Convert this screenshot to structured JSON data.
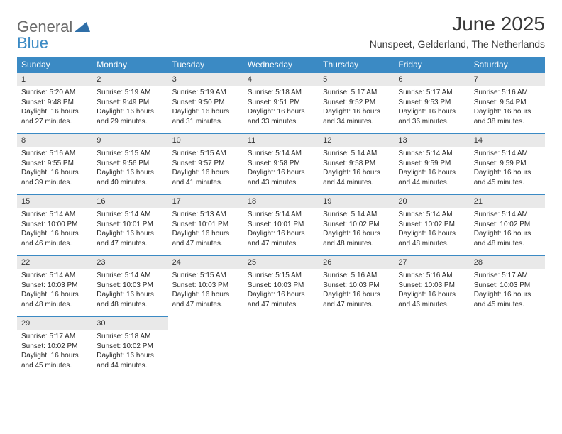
{
  "logo": {
    "line1": "General",
    "line2": "Blue",
    "shape_color": "#2f6fa8"
  },
  "title": "June 2025",
  "subtitle": "Nunspeet, Gelderland, The Netherlands",
  "colors": {
    "header_bg": "#3b8ac4",
    "header_text": "#ffffff",
    "daynum_bg": "#e9e9e9",
    "daynum_border": "#3b8ac4",
    "body_text": "#2a2a2a",
    "title_text": "#3a3a3a",
    "logo_gray": "#6b6b6b"
  },
  "day_names": [
    "Sunday",
    "Monday",
    "Tuesday",
    "Wednesday",
    "Thursday",
    "Friday",
    "Saturday"
  ],
  "weeks": [
    [
      {
        "n": "1",
        "sr": "5:20 AM",
        "ss": "9:48 PM",
        "dl": "16 hours and 27 minutes."
      },
      {
        "n": "2",
        "sr": "5:19 AM",
        "ss": "9:49 PM",
        "dl": "16 hours and 29 minutes."
      },
      {
        "n": "3",
        "sr": "5:19 AM",
        "ss": "9:50 PM",
        "dl": "16 hours and 31 minutes."
      },
      {
        "n": "4",
        "sr": "5:18 AM",
        "ss": "9:51 PM",
        "dl": "16 hours and 33 minutes."
      },
      {
        "n": "5",
        "sr": "5:17 AM",
        "ss": "9:52 PM",
        "dl": "16 hours and 34 minutes."
      },
      {
        "n": "6",
        "sr": "5:17 AM",
        "ss": "9:53 PM",
        "dl": "16 hours and 36 minutes."
      },
      {
        "n": "7",
        "sr": "5:16 AM",
        "ss": "9:54 PM",
        "dl": "16 hours and 38 minutes."
      }
    ],
    [
      {
        "n": "8",
        "sr": "5:16 AM",
        "ss": "9:55 PM",
        "dl": "16 hours and 39 minutes."
      },
      {
        "n": "9",
        "sr": "5:15 AM",
        "ss": "9:56 PM",
        "dl": "16 hours and 40 minutes."
      },
      {
        "n": "10",
        "sr": "5:15 AM",
        "ss": "9:57 PM",
        "dl": "16 hours and 41 minutes."
      },
      {
        "n": "11",
        "sr": "5:14 AM",
        "ss": "9:58 PM",
        "dl": "16 hours and 43 minutes."
      },
      {
        "n": "12",
        "sr": "5:14 AM",
        "ss": "9:58 PM",
        "dl": "16 hours and 44 minutes."
      },
      {
        "n": "13",
        "sr": "5:14 AM",
        "ss": "9:59 PM",
        "dl": "16 hours and 44 minutes."
      },
      {
        "n": "14",
        "sr": "5:14 AM",
        "ss": "9:59 PM",
        "dl": "16 hours and 45 minutes."
      }
    ],
    [
      {
        "n": "15",
        "sr": "5:14 AM",
        "ss": "10:00 PM",
        "dl": "16 hours and 46 minutes."
      },
      {
        "n": "16",
        "sr": "5:14 AM",
        "ss": "10:01 PM",
        "dl": "16 hours and 47 minutes."
      },
      {
        "n": "17",
        "sr": "5:13 AM",
        "ss": "10:01 PM",
        "dl": "16 hours and 47 minutes."
      },
      {
        "n": "18",
        "sr": "5:14 AM",
        "ss": "10:01 PM",
        "dl": "16 hours and 47 minutes."
      },
      {
        "n": "19",
        "sr": "5:14 AM",
        "ss": "10:02 PM",
        "dl": "16 hours and 48 minutes."
      },
      {
        "n": "20",
        "sr": "5:14 AM",
        "ss": "10:02 PM",
        "dl": "16 hours and 48 minutes."
      },
      {
        "n": "21",
        "sr": "5:14 AM",
        "ss": "10:02 PM",
        "dl": "16 hours and 48 minutes."
      }
    ],
    [
      {
        "n": "22",
        "sr": "5:14 AM",
        "ss": "10:03 PM",
        "dl": "16 hours and 48 minutes."
      },
      {
        "n": "23",
        "sr": "5:14 AM",
        "ss": "10:03 PM",
        "dl": "16 hours and 48 minutes."
      },
      {
        "n": "24",
        "sr": "5:15 AM",
        "ss": "10:03 PM",
        "dl": "16 hours and 47 minutes."
      },
      {
        "n": "25",
        "sr": "5:15 AM",
        "ss": "10:03 PM",
        "dl": "16 hours and 47 minutes."
      },
      {
        "n": "26",
        "sr": "5:16 AM",
        "ss": "10:03 PM",
        "dl": "16 hours and 47 minutes."
      },
      {
        "n": "27",
        "sr": "5:16 AM",
        "ss": "10:03 PM",
        "dl": "16 hours and 46 minutes."
      },
      {
        "n": "28",
        "sr": "5:17 AM",
        "ss": "10:03 PM",
        "dl": "16 hours and 45 minutes."
      }
    ],
    [
      {
        "n": "29",
        "sr": "5:17 AM",
        "ss": "10:02 PM",
        "dl": "16 hours and 45 minutes."
      },
      {
        "n": "30",
        "sr": "5:18 AM",
        "ss": "10:02 PM",
        "dl": "16 hours and 44 minutes."
      },
      null,
      null,
      null,
      null,
      null
    ]
  ],
  "labels": {
    "sunrise": "Sunrise:",
    "sunset": "Sunset:",
    "daylight": "Daylight:"
  }
}
